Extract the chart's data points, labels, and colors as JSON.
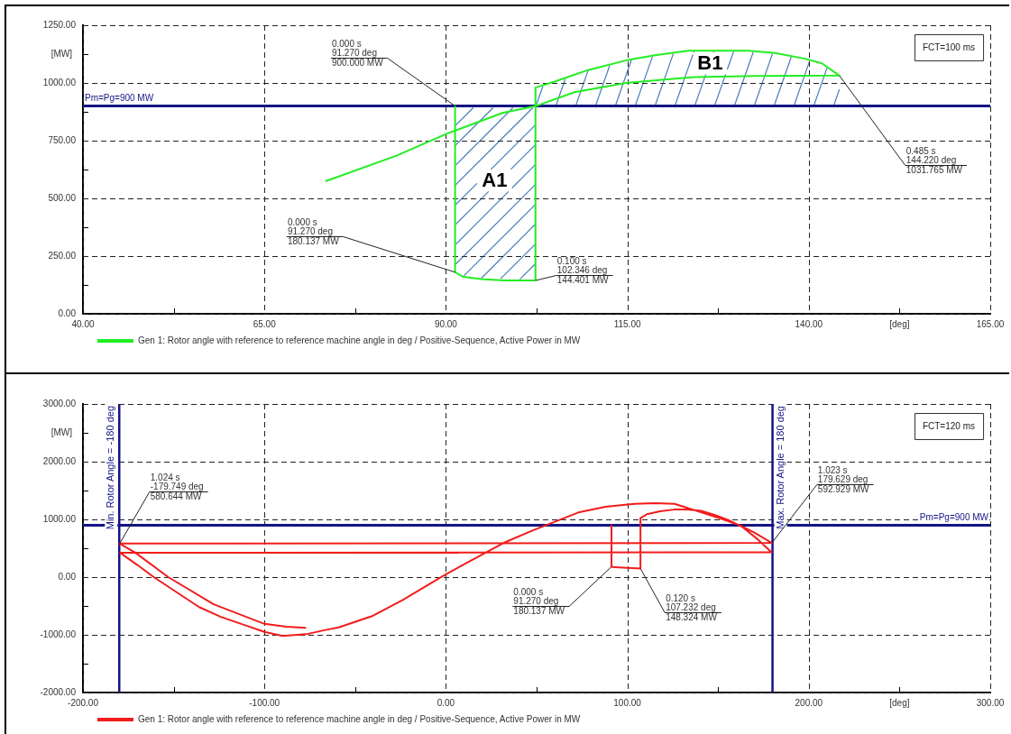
{
  "chart_data": [
    {
      "type": "line",
      "xlabel": "[deg]",
      "ylabel": "[MW]",
      "x": [
        91.27,
        91.27,
        92.4,
        94.9,
        98,
        102.346,
        102.346,
        104.9,
        109.5,
        115.1,
        118.8,
        123.4,
        128,
        131.7,
        135.3,
        139.5,
        141.8,
        144.22,
        132.6,
        124.3,
        120.1,
        114.8,
        107.7,
        102.4,
        97.8,
        90.1,
        83.2,
        73.5
      ],
      "series": [
        {
          "name": "Gen 1: Rotor angle with reference to reference machine angle in deg / Positive-Sequence, Active Power in MW",
          "color": "#22ee22",
          "values": [
            900,
            180.137,
            160,
            150,
            145,
            144.401,
            980,
            1005,
            1055,
            1100,
            1120,
            1140,
            1140,
            1140,
            1130,
            1105,
            1085,
            1031.765,
            1030,
            1025,
            1015,
            1000,
            960,
            900,
            870,
            780,
            685,
            575
          ]
        }
      ],
      "xlim": [
        40,
        165
      ],
      "ylim": [
        0,
        1250
      ],
      "xticks": [
        {
          "value": 40,
          "label": "40.00"
        },
        {
          "value": 52.5,
          "label": null
        },
        {
          "value": 65,
          "label": "65.00"
        },
        {
          "value": 77.5,
          "label": null
        },
        {
          "value": 90,
          "label": "90.00"
        },
        {
          "value": 102.5,
          "label": null
        },
        {
          "value": 115,
          "label": "115.00"
        },
        {
          "value": 127.5,
          "label": null
        },
        {
          "value": 140,
          "label": "140.00"
        },
        {
          "value": 152.5,
          "label": null
        },
        {
          "value": 165,
          "label": "165.00"
        }
      ],
      "yticks": [
        {
          "value": 0,
          "label": "0.00"
        },
        {
          "value": 125,
          "label": null
        },
        {
          "value": 250,
          "label": "250.00"
        },
        {
          "value": 375,
          "label": null
        },
        {
          "value": 500,
          "label": "500.00"
        },
        {
          "value": 625,
          "label": null
        },
        {
          "value": 750,
          "label": "750.00"
        },
        {
          "value": 875,
          "label": null
        },
        {
          "value": 1000,
          "label": "1000.00"
        },
        {
          "value": 1125,
          "label": null
        },
        {
          "value": 1250,
          "label": "1250.00"
        }
      ],
      "grid": true,
      "legend": "bottom",
      "ref_lines": [
        {
          "axis": "y",
          "value": 900,
          "label": "Pm=Pg=900 MW",
          "color": "#141485"
        }
      ],
      "annotations": [
        "FCT=100 ms",
        {
          "text": "0.000 s\n91.270 deg\n900.000 MW",
          "x": 91.27,
          "y": 900
        },
        {
          "text": "0.000 s\n91.270 deg\n180.137 MW",
          "x": 91.27,
          "y": 180.137
        },
        {
          "text": "0.100 s\n102.346 deg\n144.401 MW",
          "x": 102.346,
          "y": 144.401
        },
        {
          "text": "0.485 s\n144.220 deg\n1031.765 MW",
          "x": 144.22,
          "y": 1031.765
        },
        {
          "text": "A1",
          "x": 96.7,
          "y": 578
        },
        {
          "text": "B1",
          "x": 126.4,
          "y": 1085
        }
      ]
    },
    {
      "type": "line",
      "xlabel": "[deg]",
      "ylabel": "[MW]",
      "x": [
        91.27,
        91.27,
        93,
        107.232,
        107.232,
        110.8,
        118,
        125.7,
        133,
        140.6,
        148,
        155.6,
        163.8,
        172,
        179.5,
        -179.5,
        -170,
        -161,
        -148,
        -136,
        -124,
        -111,
        -100,
        -90,
        -77,
        -67,
        -59,
        -41,
        -24,
        0,
        21,
        33,
        48,
        73,
        88,
        104,
        115,
        126,
        141,
        151,
        161,
        170,
        179.629,
        -179.749,
        -171,
        -153,
        -128,
        -100,
        -88,
        -77.5
      ],
      "series": [
        {
          "name": "Gen 1: Rotor angle with reference to reference machine angle in deg / Positive-Sequence, Active Power in MW",
          "color": "#f21c1c",
          "values": [
            900,
            180.137,
            170,
            148.324,
            1020,
            1090,
            1140,
            1170,
            1170,
            1150,
            1080,
            990,
            860,
            650,
            430,
            420,
            210,
            0,
            -270,
            -520,
            -690,
            -830,
            -950,
            -1020,
            -990,
            -920,
            -870,
            -680,
            -400,
            50,
            410,
            610,
            810,
            1120,
            1220,
            1270,
            1280,
            1270,
            1120,
            1020,
            910,
            770,
            592.929,
            580.644,
            420,
            0,
            -470,
            -810,
            -860,
            -880
          ]
        }
      ],
      "xlim": [
        -200,
        300
      ],
      "ylim": [
        -2000,
        3000
      ],
      "xticks": [
        {
          "value": -200,
          "label": "-200.00"
        },
        {
          "value": -150,
          "label": null
        },
        {
          "value": -100,
          "label": "-100.00"
        },
        {
          "value": -50,
          "label": null
        },
        {
          "value": 0,
          "label": "0.00"
        },
        {
          "value": 50,
          "label": null
        },
        {
          "value": 100,
          "label": "100.00"
        },
        {
          "value": 150,
          "label": null
        },
        {
          "value": 200,
          "label": "200.00"
        },
        {
          "value": 250,
          "label": null
        },
        {
          "value": 300,
          "label": "300.00"
        }
      ],
      "yticks": [
        {
          "value": -2000,
          "label": "-2000.00"
        },
        {
          "value": -1500,
          "label": null
        },
        {
          "value": -1000,
          "label": "-1000.00"
        },
        {
          "value": -500,
          "label": null
        },
        {
          "value": 0,
          "label": "0.00"
        },
        {
          "value": 500,
          "label": null
        },
        {
          "value": 1000,
          "label": "1000.00"
        },
        {
          "value": 1500,
          "label": null
        },
        {
          "value": 2000,
          "label": "2000.00"
        },
        {
          "value": 2500,
          "label": null
        },
        {
          "value": 3000,
          "label": "3000.00"
        }
      ],
      "grid": true,
      "legend": "bottom",
      "ref_lines": [
        {
          "axis": "y",
          "value": 900,
          "label": "Pm=Pg=900 MW",
          "color": "#141485"
        },
        {
          "axis": "x",
          "value": -180,
          "label": "Min. Rotor Angle = -180 deg",
          "color": "#141485"
        },
        {
          "axis": "x",
          "value": 180,
          "label": "Max. Rotor Angle = 180 deg",
          "color": "#141485"
        }
      ],
      "annotations": [
        "FCT=120 ms",
        {
          "text": "1.024 s\n-179.749 deg\n580.644 MW",
          "x": -179.749,
          "y": 580.644
        },
        {
          "text": "1.023 s\n179.629 deg\n592.929 MW",
          "x": 179.629,
          "y": 592.929
        },
        {
          "text": "0.000 s\n91.270 deg\n180.137 MW",
          "x": 91.27,
          "y": 180.137
        },
        {
          "text": "0.120 s\n107.232 deg\n148.324 MW",
          "x": 107.232,
          "y": 148.324
        }
      ]
    }
  ]
}
